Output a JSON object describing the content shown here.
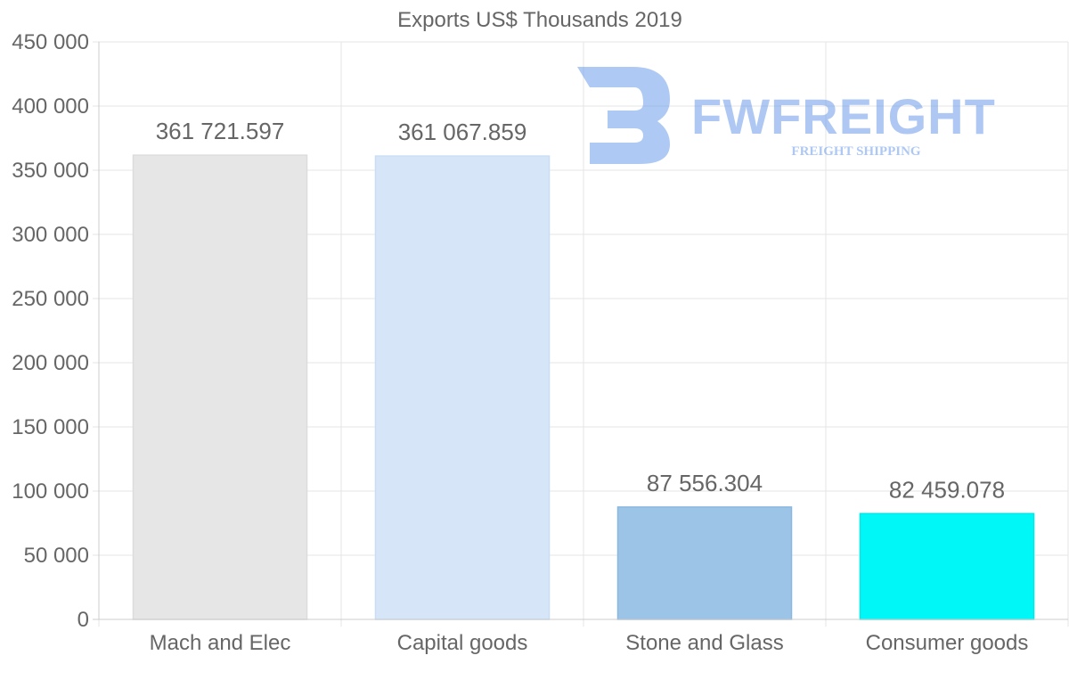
{
  "chart_data": {
    "type": "bar",
    "title": "Exports US$ Thousands 2019",
    "xlabel": "",
    "ylabel": "",
    "categories": [
      "Mach and Elec",
      "Capital goods",
      "Stone and Glass",
      "Consumer goods"
    ],
    "values": [
      361721.597,
      361067.859,
      87556.304,
      82459.078
    ],
    "value_labels": [
      "361 721.597",
      "361 067.859",
      "87 556.304",
      "82 459.078"
    ],
    "bar_colors": [
      "#e6e6e6",
      "#d6e6f8",
      "#9bc4e6",
      "#00f7f7"
    ],
    "bar_border_colors": [
      "#dcdcdc",
      "#c9def5",
      "#8ab8e0",
      "#00e8e8"
    ],
    "ylim": [
      0,
      450000
    ],
    "y_ticks": [
      0,
      50000,
      100000,
      150000,
      200000,
      250000,
      300000,
      350000,
      400000,
      450000
    ],
    "y_tick_labels": [
      "0",
      "50 000",
      "100 000",
      "150 000",
      "200 000",
      "250 000",
      "300 000",
      "350 000",
      "400 000",
      "450 000"
    ],
    "grid": true,
    "legend": "none"
  },
  "watermark": {
    "brand": "FWFREIGHT",
    "tagline": "FREIGHT SHIPPING",
    "color": "#6c9ceb"
  },
  "colors": {
    "text": "#666666",
    "grid": "#e5e5e5",
    "axis": "#cccccc"
  }
}
